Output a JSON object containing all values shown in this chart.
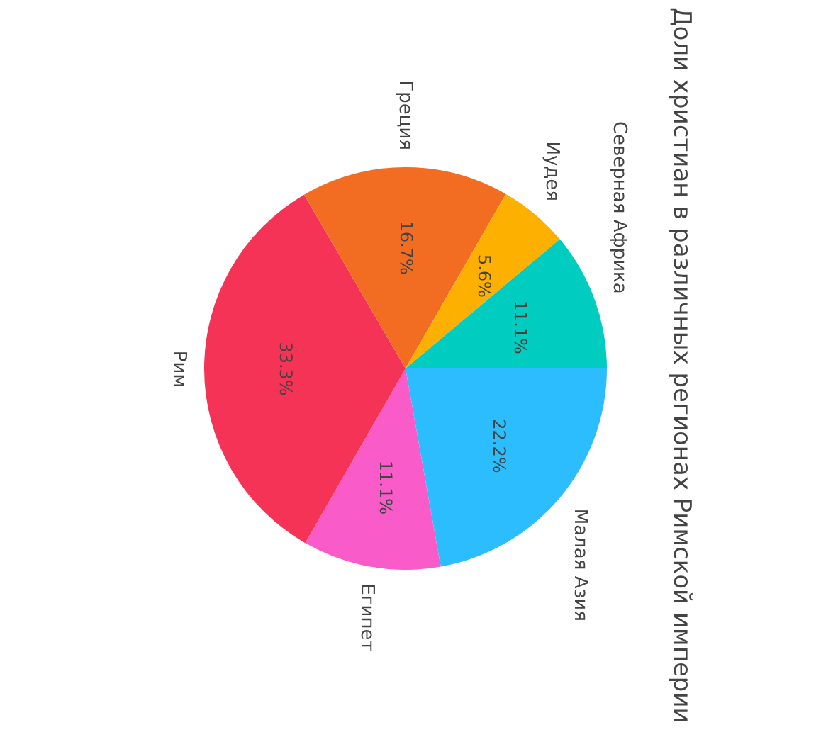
{
  "chart_data": {
    "type": "pie",
    "title": "Доли христиан в различных регионах Римской империи",
    "categories": [
      "Малая Азия",
      "Египет",
      "Рим",
      "Греция",
      "Иудея",
      "Северная Африка"
    ],
    "values": [
      22.2,
      11.1,
      33.3,
      16.7,
      5.6,
      11.1
    ],
    "value_labels": [
      "22.2%",
      "11.1%",
      "33.3%",
      "16.7%",
      "5.6%",
      "11.1%"
    ],
    "colors": [
      "#2bbdfd",
      "#f95bc9",
      "#f53357",
      "#f26c22",
      "#fdb000",
      "#00ccbf"
    ],
    "legend": false
  }
}
